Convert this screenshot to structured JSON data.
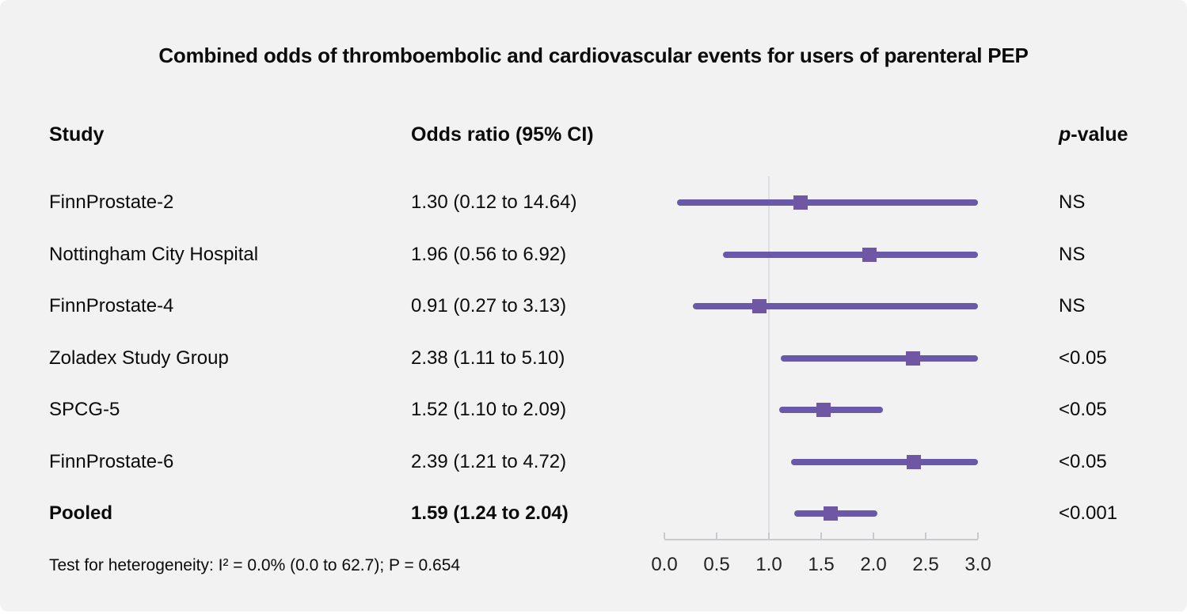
{
  "title": "Combined odds of thromboembolic and cardiovascular events for users of parenteral PEP",
  "columns": {
    "study": "Study",
    "odds_ratio": "Odds ratio (95% CI)",
    "p_italic": "p",
    "p_rest": "-value"
  },
  "footnote": "Test for heterogeneity: I² = 0.0% (0.0 to 62.7); P = 0.654",
  "chart_data": {
    "type": "forest",
    "title": "Combined odds of thromboembolic and cardiovascular events for users of parenteral PEP",
    "xlabel": "Odds ratio",
    "xlim": [
      0.0,
      3.0
    ],
    "x_ticks": [
      "0.0",
      "0.5",
      "1.0",
      "1.5",
      "2.0",
      "2.5",
      "3.0"
    ],
    "reference_line": 1.0,
    "grid": false,
    "rows": [
      {
        "study": "FinnProstate-2",
        "or": 1.3,
        "ci_low": 0.12,
        "ci_high": 14.64,
        "or_ci": "1.30 (0.12 to 14.64)",
        "p": "NS",
        "pooled": false
      },
      {
        "study": "Nottingham City Hospital",
        "or": 1.96,
        "ci_low": 0.56,
        "ci_high": 6.92,
        "or_ci": "1.96 (0.56 to 6.92)",
        "p": "NS",
        "pooled": false
      },
      {
        "study": "FinnProstate-4",
        "or": 0.91,
        "ci_low": 0.27,
        "ci_high": 3.13,
        "or_ci": "0.91 (0.27 to 3.13)",
        "p": "NS",
        "pooled": false
      },
      {
        "study": "Zoladex Study Group",
        "or": 2.38,
        "ci_low": 1.11,
        "ci_high": 5.1,
        "or_ci": "2.38 (1.11 to 5.10)",
        "p": "<0.05",
        "pooled": false
      },
      {
        "study": "SPCG-5",
        "or": 1.52,
        "ci_low": 1.1,
        "ci_high": 2.09,
        "or_ci": "1.52 (1.10 to 2.09)",
        "p": "<0.05",
        "pooled": false
      },
      {
        "study": "FinnProstate-6",
        "or": 2.39,
        "ci_low": 1.21,
        "ci_high": 4.72,
        "or_ci": "2.39 (1.21 to 4.72)",
        "p": "<0.05",
        "pooled": false
      },
      {
        "study": "Pooled",
        "or": 1.59,
        "ci_low": 1.24,
        "ci_high": 2.04,
        "or_ci": "1.59 (1.24 to 2.04)",
        "p": "<0.001",
        "pooled": true
      }
    ],
    "colors": {
      "ci_line": "#6959A8",
      "marker": "#6F57A4",
      "reference_line": "#DCE0E5",
      "axis": "#C8CACD",
      "background": "#F2F2F2",
      "text": "#0B0B0B"
    },
    "legend": null
  }
}
